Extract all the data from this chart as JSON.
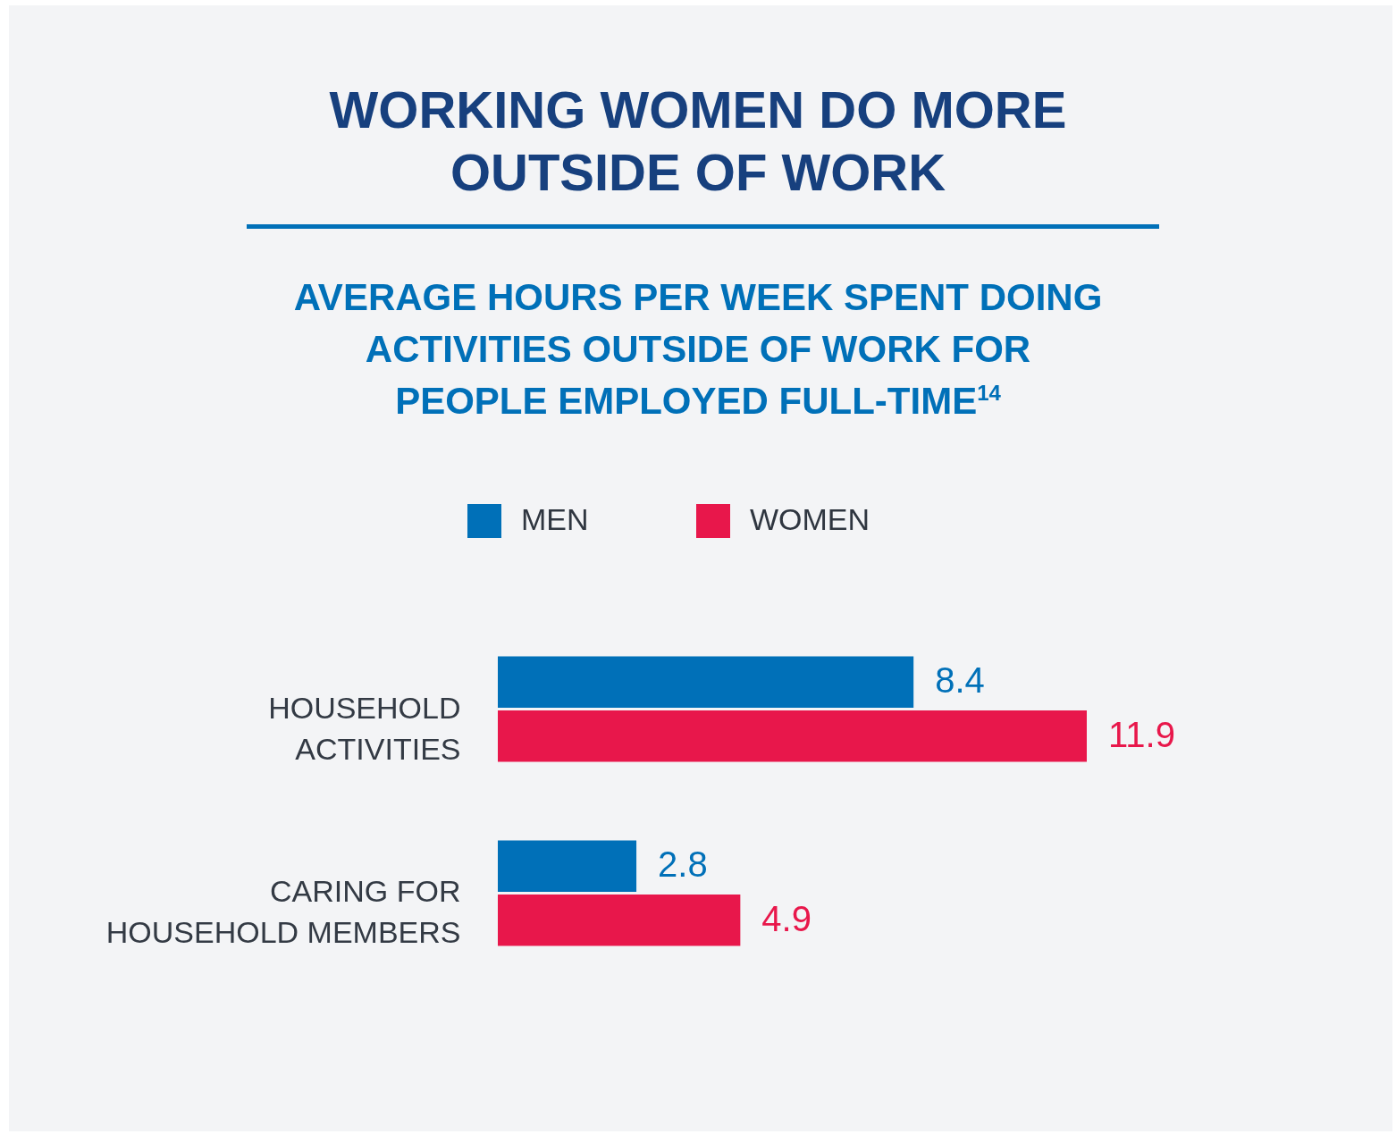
{
  "chart_data": {
    "type": "bar",
    "orientation": "horizontal",
    "title": "WORKING WOMEN DO MORE OUTSIDE OF WORK",
    "subtitle": "AVERAGE HOURS PER WEEK SPENT DOING ACTIVITIES OUTSIDE OF WORK FOR PEOPLE EMPLOYED FULL-TIME$^{14}$",
    "categories": [
      "HOUSEHOLD ACTIVITIES",
      "CARING FOR HOUSEHOLD MEMBERS"
    ],
    "series": [
      {
        "name": "MEN",
        "color": "#0070b8",
        "values": [
          8.4,
          2.8
        ]
      },
      {
        "name": "WOMEN",
        "color": "#e8174b",
        "values": [
          11.9,
          4.9
        ]
      }
    ],
    "data_labels": true,
    "legend": "top"
  }
}
